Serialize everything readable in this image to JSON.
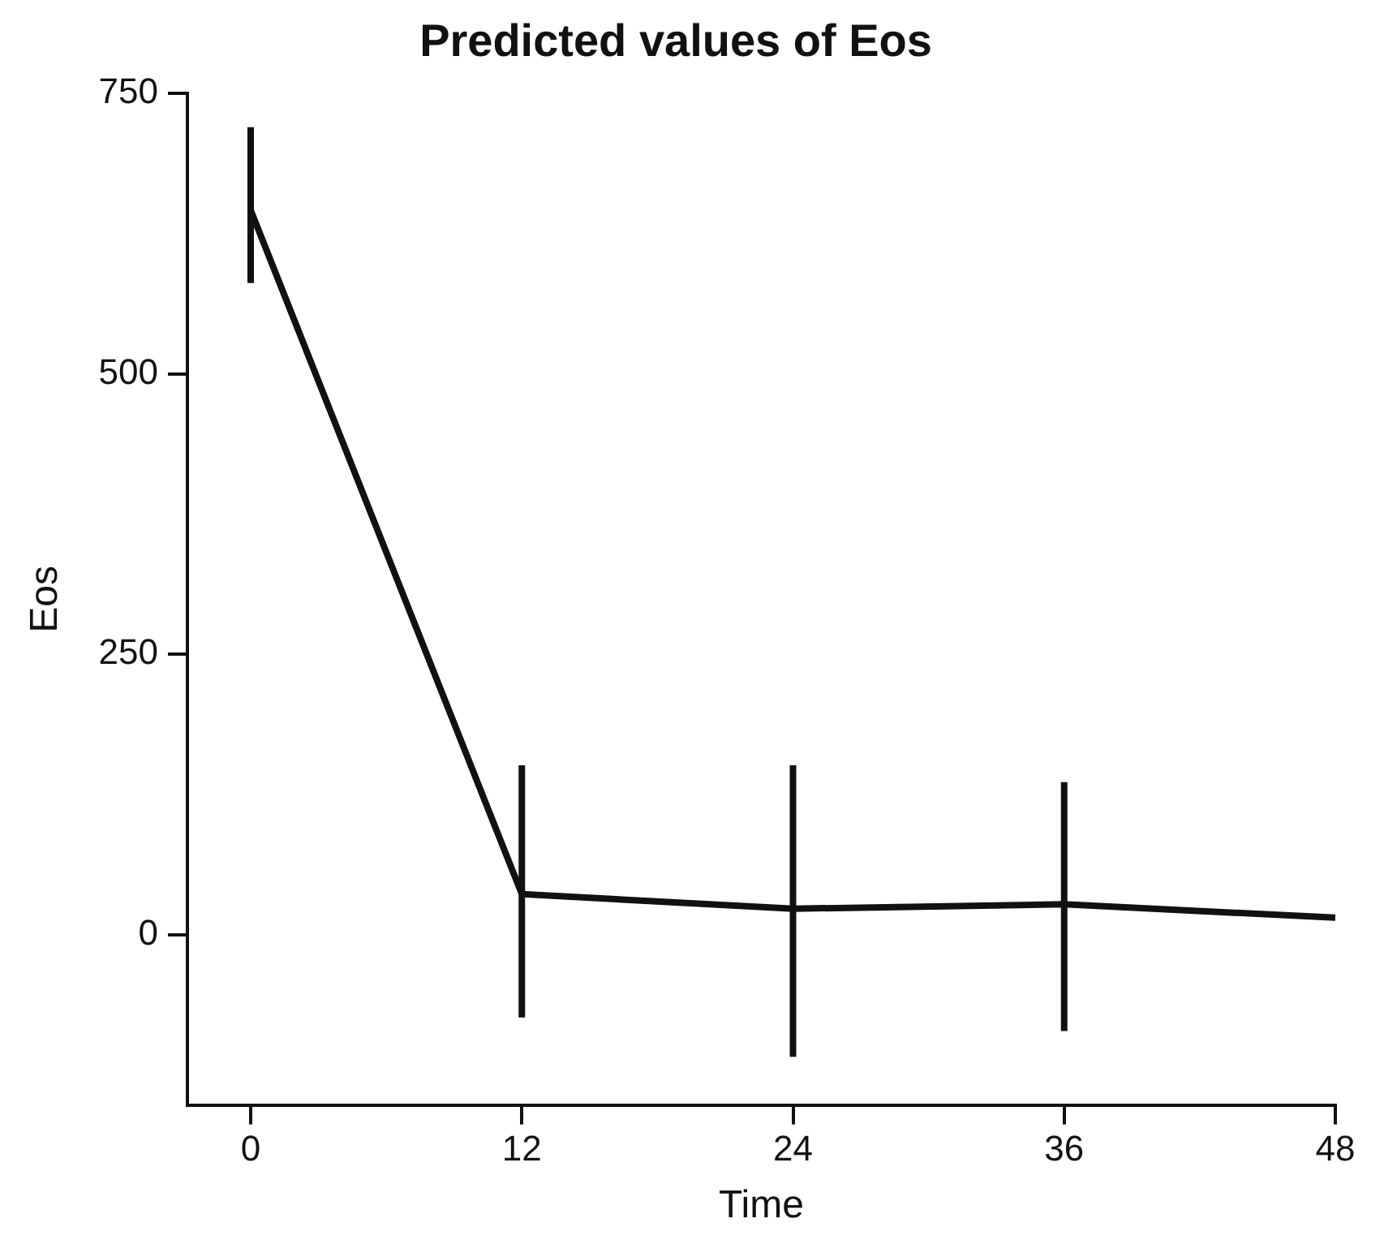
{
  "chart_data": {
    "type": "line",
    "title": "Predicted values of Eos",
    "xlabel": "Time",
    "ylabel": "Eos",
    "x": [
      0,
      12,
      24,
      36,
      48
    ],
    "series": [
      {
        "color": "#111111",
        "values": [
          646,
          36,
          23,
          27,
          15
        ],
        "errors": [
          [
            581,
            720
          ],
          [
            -74,
            151
          ],
          [
            -109,
            151
          ],
          [
            -86,
            136
          ],
          null
        ]
      }
    ],
    "xlim": [
      -2.8,
      48
    ],
    "xticks": [
      0,
      12,
      24,
      36,
      48
    ],
    "ylim": [
      -152,
      750
    ],
    "yticks": [
      0,
      250,
      500,
      750
    ],
    "grid": false,
    "legend": false,
    "marker": "none",
    "line_style": "solid"
  }
}
